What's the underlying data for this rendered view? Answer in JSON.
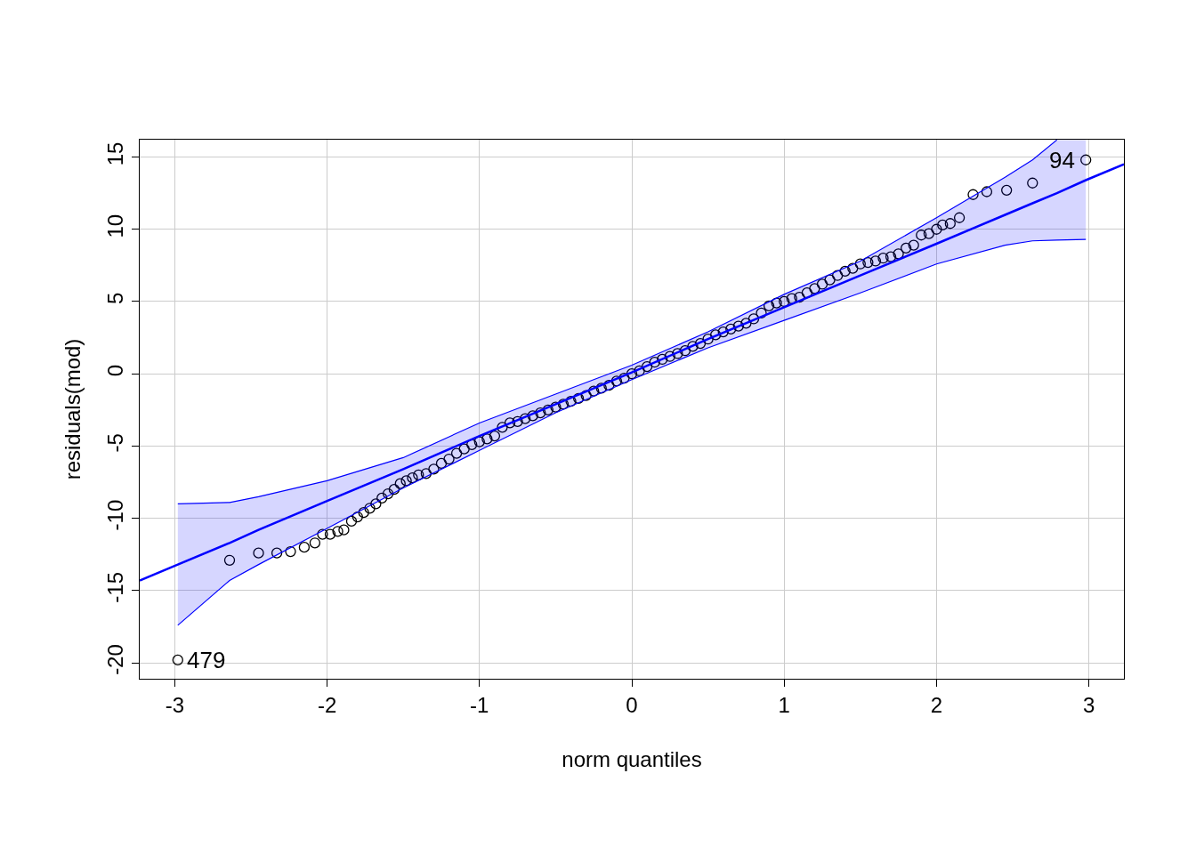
{
  "chart_data": {
    "type": "scatter",
    "xlabel": "norm quantiles",
    "ylabel": "residuals(mod)",
    "xlim": [
      -3.23,
      3.23
    ],
    "ylim": [
      -21.1,
      16.2
    ],
    "xticks": [
      -3,
      -2,
      -1,
      0,
      1,
      2,
      3
    ],
    "yticks": [
      -20,
      -15,
      -10,
      -5,
      0,
      5,
      10,
      15
    ],
    "grid": true,
    "series": [
      {
        "marker": "circle",
        "color": "#000000",
        "x": [
          -2.98,
          -2.64,
          -2.45,
          -2.33,
          -2.24,
          -2.15,
          -2.08,
          -2.03,
          -1.98,
          -1.93,
          -1.89,
          -1.84,
          -1.8,
          -1.76,
          -1.72,
          -1.68,
          -1.64,
          -1.6,
          -1.56,
          -1.52,
          -1.48,
          -1.44,
          -1.4,
          -1.35,
          -1.3,
          -1.25,
          -1.2,
          -1.15,
          -1.1,
          -1.05,
          -1.0,
          -0.95,
          -0.9,
          -0.85,
          -0.8,
          -0.75,
          -0.7,
          -0.65,
          -0.6,
          -0.55,
          -0.5,
          -0.45,
          -0.4,
          -0.35,
          -0.3,
          -0.25,
          -0.2,
          -0.15,
          -0.1,
          -0.05,
          0.0,
          0.05,
          0.1,
          0.15,
          0.2,
          0.25,
          0.3,
          0.35,
          0.4,
          0.45,
          0.5,
          0.55,
          0.6,
          0.65,
          0.7,
          0.75,
          0.8,
          0.85,
          0.9,
          0.95,
          1.0,
          1.05,
          1.1,
          1.15,
          1.2,
          1.25,
          1.3,
          1.35,
          1.4,
          1.45,
          1.5,
          1.55,
          1.6,
          1.65,
          1.7,
          1.75,
          1.8,
          1.85,
          1.9,
          1.95,
          2.0,
          2.04,
          2.09,
          2.15,
          2.24,
          2.33,
          2.46,
          2.63,
          2.98
        ],
        "values": [
          -19.8,
          -12.9,
          -12.4,
          -12.4,
          -12.3,
          -12.0,
          -11.7,
          -11.1,
          -11.1,
          -10.9,
          -10.8,
          -10.2,
          -9.9,
          -9.6,
          -9.3,
          -9.0,
          -8.6,
          -8.3,
          -8.0,
          -7.6,
          -7.4,
          -7.2,
          -7.0,
          -6.9,
          -6.6,
          -6.2,
          -5.9,
          -5.5,
          -5.2,
          -4.9,
          -4.7,
          -4.5,
          -4.3,
          -3.7,
          -3.4,
          -3.3,
          -3.1,
          -2.9,
          -2.7,
          -2.5,
          -2.3,
          -2.1,
          -1.9,
          -1.7,
          -1.5,
          -1.2,
          -1.0,
          -0.8,
          -0.5,
          -0.3,
          0.0,
          0.2,
          0.5,
          0.8,
          1.0,
          1.2,
          1.4,
          1.6,
          1.9,
          2.1,
          2.4,
          2.7,
          2.9,
          3.1,
          3.3,
          3.5,
          3.8,
          4.2,
          4.7,
          4.9,
          5.0,
          5.2,
          5.3,
          5.6,
          5.9,
          6.2,
          6.5,
          6.8,
          7.1,
          7.3,
          7.6,
          7.7,
          7.8,
          8.0,
          8.1,
          8.3,
          8.7,
          8.9,
          9.6,
          9.7,
          10.0,
          10.3,
          10.4,
          10.8,
          12.4,
          12.6,
          12.7,
          13.2,
          14.8
        ]
      },
      {
        "type": "line",
        "marker": "none",
        "color": "#0000ff",
        "x": [
          -3.23,
          -2.98,
          -2.64,
          -2.45,
          -2.0,
          -1.5,
          -1.0,
          -0.5,
          0.0,
          0.5,
          1.0,
          1.5,
          2.0,
          2.45,
          2.63,
          2.79,
          2.98,
          3.23
        ],
        "values": [
          -14.3,
          -13.2,
          -11.7,
          -10.8,
          -8.8,
          -6.6,
          -4.3,
          -2.1,
          0.1,
          2.4,
          4.6,
          6.8,
          9.0,
          11.0,
          11.8,
          12.5,
          13.4,
          14.5
        ],
        "lower": [
          null,
          -17.4,
          -14.3,
          -13.2,
          -10.7,
          -7.9,
          -5.3,
          -2.7,
          -0.4,
          1.8,
          3.7,
          5.6,
          7.6,
          8.9,
          9.2,
          9.25,
          9.3,
          null
        ],
        "upper": [
          null,
          -9.0,
          -8.9,
          -8.5,
          -7.4,
          -5.8,
          -3.4,
          -1.4,
          0.6,
          2.9,
          5.5,
          7.8,
          10.8,
          13.6,
          14.8,
          16.18,
          16.18,
          null
        ]
      },
      {
        "type": "line",
        "marker": "none",
        "color": "#0000ff",
        "x": [
          -2.98,
          -2.64,
          -2.45,
          -2.0,
          -1.5,
          -1.0,
          -0.5,
          0.0,
          0.5,
          1.0,
          1.5,
          2.0,
          2.45,
          2.63,
          2.79,
          2.98
        ],
        "values": [
          -17.4,
          -14.3,
          -13.2,
          -10.7,
          -7.9,
          -5.3,
          -2.7,
          -0.4,
          1.8,
          3.7,
          5.6,
          7.6,
          8.9,
          9.2,
          9.25,
          9.3
        ]
      },
      {
        "type": "line",
        "marker": "none",
        "color": "#0000ff",
        "x": [
          -2.98,
          -2.64,
          -2.45,
          -2.0,
          -1.5,
          -1.0,
          -0.5,
          0.0,
          0.5,
          1.0,
          1.5,
          2.0,
          2.45,
          2.63,
          2.79
        ],
        "values": [
          -9.0,
          -8.9,
          -8.5,
          -7.4,
          -5.8,
          -3.4,
          -1.4,
          0.6,
          2.9,
          5.5,
          7.8,
          10.8,
          13.6,
          14.8,
          16.18
        ]
      }
    ],
    "annotations": [
      {
        "text": "479",
        "x": -2.98,
        "y": -19.8
      },
      {
        "text": "94",
        "x": 2.98,
        "y": 14.8
      }
    ]
  }
}
